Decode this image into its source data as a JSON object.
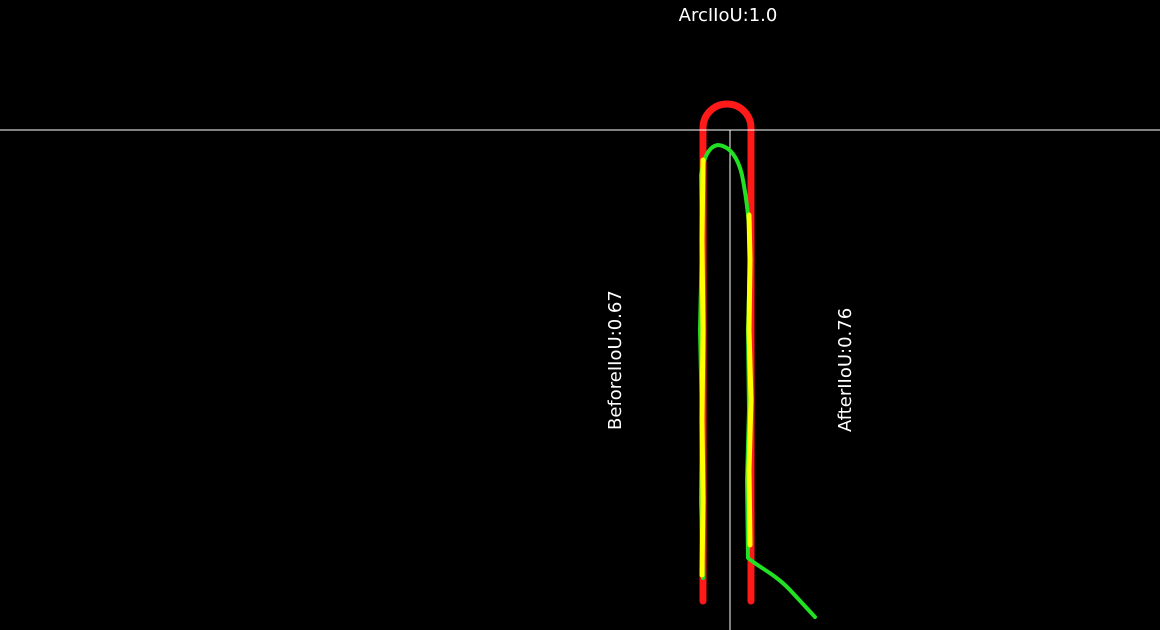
{
  "labels": {
    "arc_iou": "ArcIIoU:1.0",
    "before_iou": "BeforeIIoU:0.67",
    "after_iou": "AfterIIoU:0.76"
  },
  "colors": {
    "background": "#000000",
    "guide_lines": "#ffffff",
    "ground_truth": "#ff0000",
    "before_prediction": "#ffff00",
    "after_prediction": "#00ee00"
  }
}
